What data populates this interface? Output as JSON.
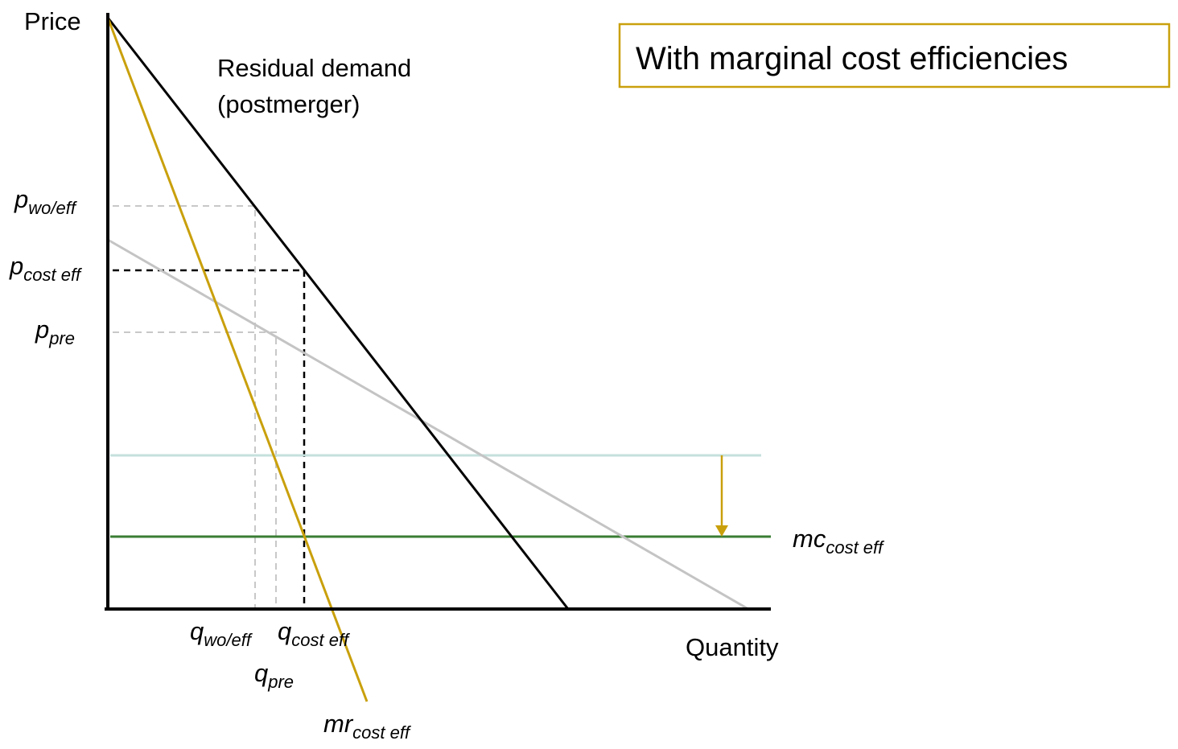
{
  "axes": {
    "y_label": "Price",
    "x_label": "Quantity"
  },
  "title_box": "With marginal cost efficiencies",
  "curve_label": {
    "line1": "Residual demand",
    "line2": "(postmerger)"
  },
  "price_labels": [
    {
      "main": "p",
      "sub": "wo/eff"
    },
    {
      "main": "p",
      "sub": "cost eff"
    },
    {
      "main": "p",
      "sub": "pre"
    }
  ],
  "quantity_labels": [
    {
      "main": "q",
      "sub": "wo/eff"
    },
    {
      "main": "q",
      "sub": "cost eff"
    },
    {
      "main": "q",
      "sub": "pre"
    }
  ],
  "mr_label": {
    "main": "mr",
    "sub": "cost eff"
  },
  "mc_label": {
    "main": "mc",
    "sub": "cost eff"
  }
}
